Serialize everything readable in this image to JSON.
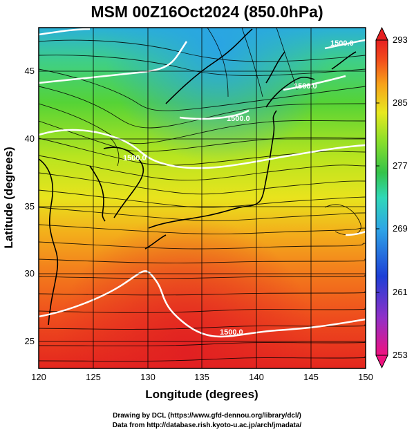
{
  "title": "MSM 00Z16Oct2024 (850.0hPa)",
  "map": {
    "xlabel": "Longitude (degrees)",
    "ylabel": "Latitude  (degrees)",
    "lon_ticks": [
      "120",
      "125",
      "130",
      "135",
      "140",
      "145",
      "150"
    ],
    "lat_ticks": [
      "25",
      "30",
      "35",
      "40",
      "45"
    ],
    "lon_range": [
      120,
      150
    ],
    "lat_range": [
      22.4,
      47.6
    ],
    "grid": true
  },
  "colorbar": {
    "ticks": [
      "293",
      "285",
      "277",
      "269",
      "261",
      "253"
    ],
    "range": [
      253,
      293
    ],
    "colors": [
      "#f0117f",
      "#9030c8",
      "#1d3fd6",
      "#2ea5e6",
      "#30d8b8",
      "#35c34a",
      "#8adf2a",
      "#e7e820",
      "#f7a21a",
      "#f24a1c",
      "#e61f20"
    ]
  },
  "contours": [
    {
      "label": "1500.0",
      "lat_approx": 25.5
    },
    {
      "label": "1500.0",
      "lat_approx": 38.5
    },
    {
      "label": "1500.0",
      "lat_approx": 40
    },
    {
      "label": "1500.0",
      "lat_approx": 46.5
    },
    {
      "label": "1500.0",
      "lat_approx": 44
    }
  ],
  "credits": {
    "line1": "Drawing by DCL (https://www.gfd-dennou.org/library/dcl/)",
    "line2": "Data from http://database.rish.kyoto-u.ac.jp/arch/jmadata/"
  }
}
